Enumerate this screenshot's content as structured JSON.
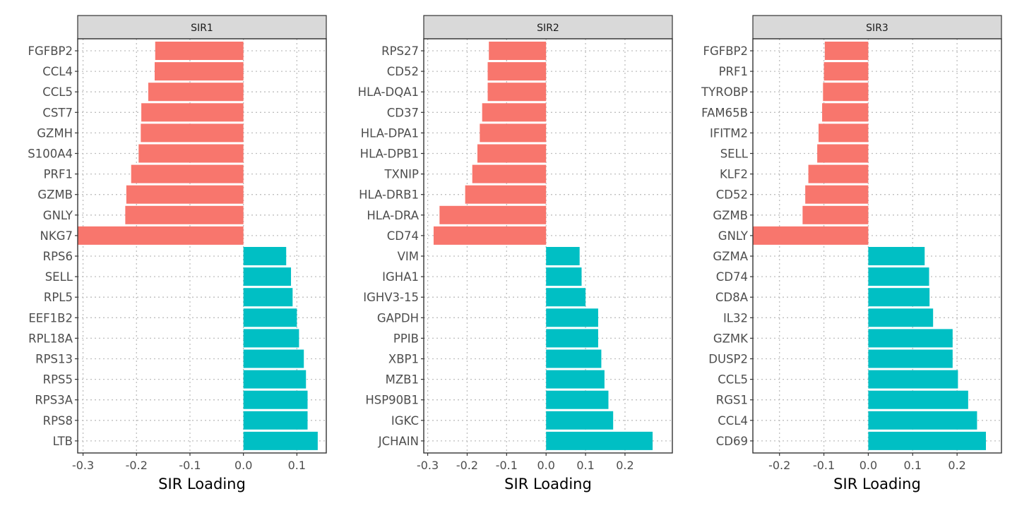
{
  "colors": {
    "negative": "#F8766D",
    "positive": "#00BFC4",
    "strip_fill": "#D9D9D9",
    "panel_border": "#333333",
    "grid": "#BEBEBE"
  },
  "chart_data": [
    {
      "type": "bar",
      "orientation": "horizontal",
      "panel_title": "SIR1",
      "xlabel": "SIR Loading",
      "xlim": [
        -0.31,
        0.155
      ],
      "xticks": [
        -0.3,
        -0.2,
        -0.1,
        0.0,
        0.1
      ],
      "xtick_labels": [
        "-0.3",
        "-0.2",
        "-0.1",
        "0.0",
        "0.1"
      ],
      "grid": "dotted",
      "categories": [
        "FGFBP2",
        "CCL4",
        "CCL5",
        "CST7",
        "GZMH",
        "S100A4",
        "PRF1",
        "GZMB",
        "GNLY",
        "NKG7",
        "RPS6",
        "SELL",
        "RPL5",
        "EEF1B2",
        "RPL18A",
        "RPS13",
        "RPS5",
        "RPS3A",
        "RPS8",
        "LTB"
      ],
      "values": [
        -0.165,
        -0.166,
        -0.178,
        -0.191,
        -0.192,
        -0.196,
        -0.21,
        -0.219,
        -0.221,
        -0.31,
        0.08,
        0.089,
        0.092,
        0.1,
        0.104,
        0.113,
        0.117,
        0.12,
        0.12,
        0.139
      ]
    },
    {
      "type": "bar",
      "orientation": "horizontal",
      "panel_title": "SIR2",
      "xlabel": "SIR Loading",
      "xlim": [
        -0.31,
        0.32
      ],
      "xticks": [
        -0.3,
        -0.2,
        -0.1,
        0.0,
        0.1,
        0.2
      ],
      "xtick_labels": [
        "-0.3",
        "-0.2",
        "-0.1",
        "0.0",
        "0.1",
        "0.2"
      ],
      "grid": "dotted",
      "categories": [
        "RPS27",
        "CD52",
        "HLA-DQA1",
        "CD37",
        "HLA-DPA1",
        "HLA-DPB1",
        "TXNIP",
        "HLA-DRB1",
        "HLA-DRA",
        "CD74",
        "VIM",
        "IGHA1",
        "IGHV3-15",
        "GAPDH",
        "PPIB",
        "XBP1",
        "MZB1",
        "HSP90B1",
        "IGKC",
        "JCHAIN"
      ],
      "values": [
        -0.145,
        -0.148,
        -0.148,
        -0.162,
        -0.168,
        -0.174,
        -0.187,
        -0.205,
        -0.27,
        -0.285,
        0.085,
        0.09,
        0.1,
        0.132,
        0.132,
        0.14,
        0.148,
        0.158,
        0.17,
        0.27
      ]
    },
    {
      "type": "bar",
      "orientation": "horizontal",
      "panel_title": "SIR3",
      "xlabel": "SIR Loading",
      "xlim": [
        -0.26,
        0.3
      ],
      "xticks": [
        -0.2,
        -0.1,
        0.0,
        0.1,
        0.2
      ],
      "xtick_labels": [
        "-0.2",
        "-0.1",
        "0.0",
        "0.1",
        "0.2"
      ],
      "grid": "dotted",
      "categories": [
        "FGFBP2",
        "PRF1",
        "TYROBP",
        "FAM65B",
        "IFITM2",
        "SELL",
        "KLF2",
        "CD52",
        "GZMB",
        "GNLY",
        "GZMA",
        "CD74",
        "CD8A",
        "IL32",
        "GZMK",
        "DUSP2",
        "CCL5",
        "RGS1",
        "CCL4",
        "CD69"
      ],
      "values": [
        -0.098,
        -0.1,
        -0.102,
        -0.104,
        -0.112,
        -0.115,
        -0.135,
        -0.142,
        -0.148,
        -0.26,
        0.127,
        0.137,
        0.138,
        0.146,
        0.19,
        0.19,
        0.202,
        0.225,
        0.245,
        0.265
      ]
    }
  ]
}
